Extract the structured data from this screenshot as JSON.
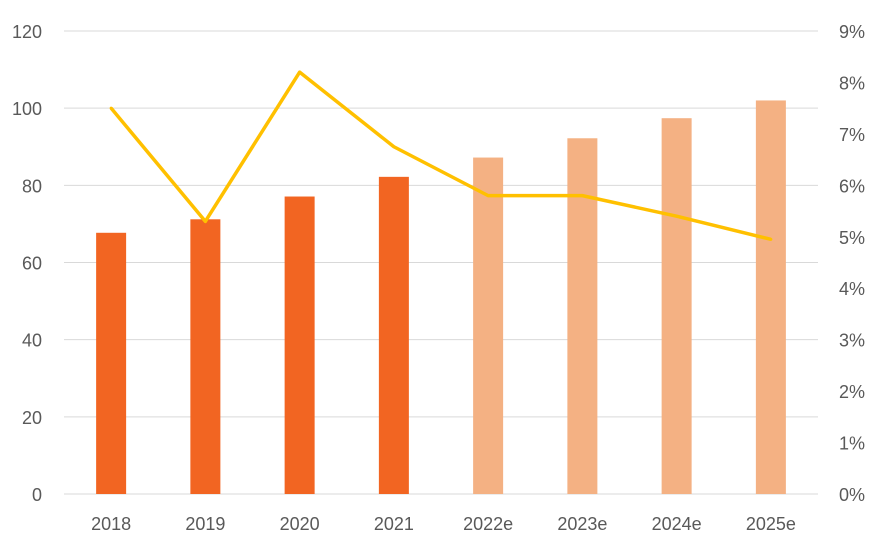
{
  "chart_data": {
    "type": "bar",
    "categories": [
      "2018",
      "2019",
      "2020",
      "2021",
      "2022e",
      "2023e",
      "2024e",
      "2025e"
    ],
    "series": [
      {
        "type": "bar",
        "axis": "left",
        "values": [
          67.7,
          71.2,
          77.1,
          82.2,
          87.2,
          92.2,
          97.4,
          102.0
        ],
        "colors": [
          "#f26522",
          "#f26522",
          "#f26522",
          "#f26522",
          "#f4b183",
          "#f4b183",
          "#f4b183",
          "#f4b183"
        ]
      },
      {
        "type": "line",
        "axis": "right",
        "values": [
          0.075,
          0.053,
          0.082,
          0.0675,
          0.058,
          0.058,
          0.054,
          0.0495
        ],
        "color": "#ffc000"
      }
    ],
    "y_left": {
      "min": 0,
      "max": 120,
      "ticks": [
        "0",
        "20",
        "40",
        "60",
        "80",
        "100",
        "120"
      ]
    },
    "y_right": {
      "min": 0,
      "max": 0.09,
      "ticks": [
        "0%",
        "1%",
        "2%",
        "3%",
        "4%",
        "5%",
        "6%",
        "7%",
        "8%",
        "9%"
      ]
    },
    "grid": true,
    "legend": "none",
    "title": "",
    "xlabel": "",
    "ylabel": ""
  }
}
